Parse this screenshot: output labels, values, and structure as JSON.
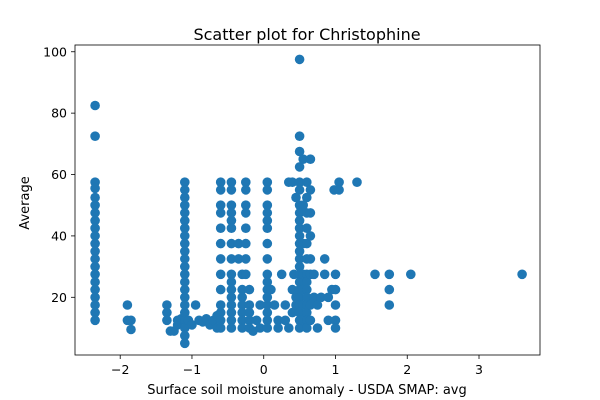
{
  "chart_data": {
    "type": "scatter",
    "title": "Scatter plot for Christophine",
    "xlabel": "Surface soil moisture anomaly  - USDA SMAP: avg",
    "ylabel": "Average",
    "xlim": [
      -2.63,
      3.85
    ],
    "ylim": [
      1.2,
      102.2
    ],
    "xticks": [
      -2,
      -1,
      0,
      1,
      2,
      3
    ],
    "yticks": [
      20,
      40,
      60,
      80,
      100
    ],
    "grid": false,
    "legend": "none",
    "marker_color": "#1f77b4",
    "points": [
      [
        -2.35,
        82.5
      ],
      [
        -2.35,
        72.5
      ],
      [
        -2.35,
        57.5
      ],
      [
        -2.35,
        55.5
      ],
      [
        -2.35,
        52.5
      ],
      [
        -2.35,
        50
      ],
      [
        -2.35,
        47.5
      ],
      [
        -2.35,
        45
      ],
      [
        -2.35,
        42.5
      ],
      [
        -2.35,
        40
      ],
      [
        -2.35,
        37.5
      ],
      [
        -2.35,
        35
      ],
      [
        -2.35,
        32.5
      ],
      [
        -2.35,
        30
      ],
      [
        -2.35,
        27.5
      ],
      [
        -2.35,
        25
      ],
      [
        -2.35,
        22.5
      ],
      [
        -2.35,
        20
      ],
      [
        -2.35,
        17.5
      ],
      [
        -2.35,
        15
      ],
      [
        -2.35,
        12.5
      ],
      [
        -1.9,
        17.5
      ],
      [
        -1.9,
        12.5
      ],
      [
        -1.85,
        9.5
      ],
      [
        -1.85,
        12.5
      ],
      [
        -1.35,
        17.5
      ],
      [
        -1.35,
        15
      ],
      [
        -1.35,
        12.5
      ],
      [
        -1.3,
        9
      ],
      [
        -1.25,
        9
      ],
      [
        -1.2,
        11
      ],
      [
        -1.2,
        12.5
      ],
      [
        -1.15,
        13
      ],
      [
        -1.1,
        57.5
      ],
      [
        -1.1,
        55
      ],
      [
        -1.1,
        52.5
      ],
      [
        -1.1,
        50
      ],
      [
        -1.1,
        47.5
      ],
      [
        -1.1,
        45
      ],
      [
        -1.1,
        42.5
      ],
      [
        -1.1,
        40
      ],
      [
        -1.1,
        37.5
      ],
      [
        -1.1,
        35
      ],
      [
        -1.1,
        32.5
      ],
      [
        -1.1,
        30
      ],
      [
        -1.1,
        27.5
      ],
      [
        -1.1,
        25
      ],
      [
        -1.1,
        22.5
      ],
      [
        -1.1,
        20
      ],
      [
        -1.1,
        17.5
      ],
      [
        -1.1,
        15
      ],
      [
        -1.1,
        12.5
      ],
      [
        -1.1,
        10
      ],
      [
        -1.1,
        7.5
      ],
      [
        -1.1,
        5
      ],
      [
        -1.05,
        12.5
      ],
      [
        -1.0,
        11
      ],
      [
        -0.95,
        17.5
      ],
      [
        -0.9,
        12.5
      ],
      [
        -0.85,
        12
      ],
      [
        -0.8,
        13
      ],
      [
        -0.75,
        11
      ],
      [
        -0.7,
        12.5
      ],
      [
        -0.65,
        10
      ],
      [
        -0.65,
        14
      ],
      [
        -0.6,
        57.5
      ],
      [
        -0.6,
        55
      ],
      [
        -0.6,
        50
      ],
      [
        -0.6,
        47.5
      ],
      [
        -0.6,
        42.5
      ],
      [
        -0.6,
        37.5
      ],
      [
        -0.6,
        32.5
      ],
      [
        -0.6,
        27.5
      ],
      [
        -0.6,
        22.5
      ],
      [
        -0.6,
        17.5
      ],
      [
        -0.6,
        15
      ],
      [
        -0.6,
        12.5
      ],
      [
        -0.6,
        10
      ],
      [
        -0.45,
        57.5
      ],
      [
        -0.45,
        55
      ],
      [
        -0.45,
        50
      ],
      [
        -0.45,
        47.5
      ],
      [
        -0.45,
        45
      ],
      [
        -0.45,
        42.5
      ],
      [
        -0.45,
        37.5
      ],
      [
        -0.45,
        32.5
      ],
      [
        -0.45,
        27.5
      ],
      [
        -0.45,
        25
      ],
      [
        -0.45,
        22.5
      ],
      [
        -0.45,
        20
      ],
      [
        -0.45,
        17.5
      ],
      [
        -0.45,
        15
      ],
      [
        -0.45,
        12.5
      ],
      [
        -0.45,
        10
      ],
      [
        -0.35,
        37.5
      ],
      [
        -0.35,
        32.5
      ],
      [
        -0.3,
        27.5
      ],
      [
        -0.3,
        22.5
      ],
      [
        -0.3,
        20
      ],
      [
        -0.3,
        17.5
      ],
      [
        -0.3,
        15
      ],
      [
        -0.3,
        12.5
      ],
      [
        -0.3,
        10
      ],
      [
        -0.25,
        57.5
      ],
      [
        -0.25,
        55
      ],
      [
        -0.25,
        50
      ],
      [
        -0.25,
        47.5
      ],
      [
        -0.25,
        42.5
      ],
      [
        -0.25,
        37.5
      ],
      [
        -0.25,
        32.5
      ],
      [
        -0.25,
        27.5
      ],
      [
        -0.2,
        22.5
      ],
      [
        -0.2,
        17.5
      ],
      [
        -0.2,
        15
      ],
      [
        -0.2,
        12.5
      ],
      [
        -0.2,
        10
      ],
      [
        -0.15,
        9
      ],
      [
        -0.1,
        12.5
      ],
      [
        -0.05,
        17.5
      ],
      [
        -0.05,
        10
      ],
      [
        0.05,
        57.5
      ],
      [
        0.05,
        55
      ],
      [
        0.05,
        50
      ],
      [
        0.05,
        47.5
      ],
      [
        0.05,
        45
      ],
      [
        0.05,
        42.5
      ],
      [
        0.05,
        37.5
      ],
      [
        0.05,
        32.5
      ],
      [
        0.05,
        27.5
      ],
      [
        0.05,
        25
      ],
      [
        0.05,
        22.5
      ],
      [
        0.05,
        20
      ],
      [
        0.05,
        17.5
      ],
      [
        0.05,
        15
      ],
      [
        0.05,
        12.5
      ],
      [
        0.05,
        10
      ],
      [
        0.1,
        22.5
      ],
      [
        0.15,
        17.5
      ],
      [
        0.2,
        12.5
      ],
      [
        0.2,
        10
      ],
      [
        0.25,
        27.5
      ],
      [
        0.3,
        17.5
      ],
      [
        0.3,
        12.5
      ],
      [
        0.35,
        10
      ],
      [
        0.4,
        22.5
      ],
      [
        0.4,
        15
      ],
      [
        0.45,
        17.5
      ],
      [
        0.35,
        57.5
      ],
      [
        0.4,
        57.5
      ],
      [
        0.45,
        52.5
      ],
      [
        0.42,
        27.5
      ],
      [
        0.45,
        20
      ],
      [
        0.5,
        97.5
      ],
      [
        0.5,
        72.5
      ],
      [
        0.5,
        67.5
      ],
      [
        0.5,
        62.5
      ],
      [
        0.5,
        57.5
      ],
      [
        0.5,
        55
      ],
      [
        0.5,
        50
      ],
      [
        0.5,
        47.5
      ],
      [
        0.5,
        45
      ],
      [
        0.5,
        42.5
      ],
      [
        0.5,
        40
      ],
      [
        0.5,
        37.5
      ],
      [
        0.5,
        35
      ],
      [
        0.5,
        32.5
      ],
      [
        0.5,
        30
      ],
      [
        0.5,
        27.5
      ],
      [
        0.5,
        25
      ],
      [
        0.5,
        22.5
      ],
      [
        0.5,
        20
      ],
      [
        0.5,
        17.5
      ],
      [
        0.5,
        15
      ],
      [
        0.5,
        12.5
      ],
      [
        0.5,
        10
      ],
      [
        0.55,
        65
      ],
      [
        0.55,
        50
      ],
      [
        0.55,
        37.5
      ],
      [
        0.55,
        27.5
      ],
      [
        0.55,
        22.5
      ],
      [
        0.55,
        17.5
      ],
      [
        0.55,
        12.5
      ],
      [
        0.6,
        57.5
      ],
      [
        0.6,
        52.5
      ],
      [
        0.6,
        47.5
      ],
      [
        0.6,
        42.5
      ],
      [
        0.6,
        37.5
      ],
      [
        0.6,
        32.5
      ],
      [
        0.6,
        27.5
      ],
      [
        0.6,
        25
      ],
      [
        0.6,
        22.5
      ],
      [
        0.6,
        20
      ],
      [
        0.6,
        17.5
      ],
      [
        0.6,
        15
      ],
      [
        0.6,
        12.5
      ],
      [
        0.6,
        10
      ],
      [
        0.65,
        65
      ],
      [
        0.65,
        55
      ],
      [
        0.65,
        47.5
      ],
      [
        0.65,
        40
      ],
      [
        0.65,
        32.5
      ],
      [
        0.65,
        27.5
      ],
      [
        0.65,
        17.5
      ],
      [
        0.65,
        12.5
      ],
      [
        0.7,
        27.5
      ],
      [
        0.7,
        20
      ],
      [
        0.75,
        17.5
      ],
      [
        0.75,
        10
      ],
      [
        0.8,
        20
      ],
      [
        0.85,
        32.5
      ],
      [
        0.85,
        27.5
      ],
      [
        0.9,
        20
      ],
      [
        0.9,
        12.5
      ],
      [
        0.95,
        22.5
      ],
      [
        1.0,
        22.5
      ],
      [
        1.0,
        27.5
      ],
      [
        1.0,
        17.5
      ],
      [
        1.0,
        12.5
      ],
      [
        1.0,
        10
      ],
      [
        0.98,
        55
      ],
      [
        1.05,
        57.5
      ],
      [
        1.05,
        55
      ],
      [
        1.3,
        57.5
      ],
      [
        1.55,
        27.5
      ],
      [
        1.75,
        27.5
      ],
      [
        1.75,
        22.5
      ],
      [
        1.75,
        17.5
      ],
      [
        2.05,
        27.5
      ],
      [
        3.6,
        27.5
      ]
    ]
  }
}
